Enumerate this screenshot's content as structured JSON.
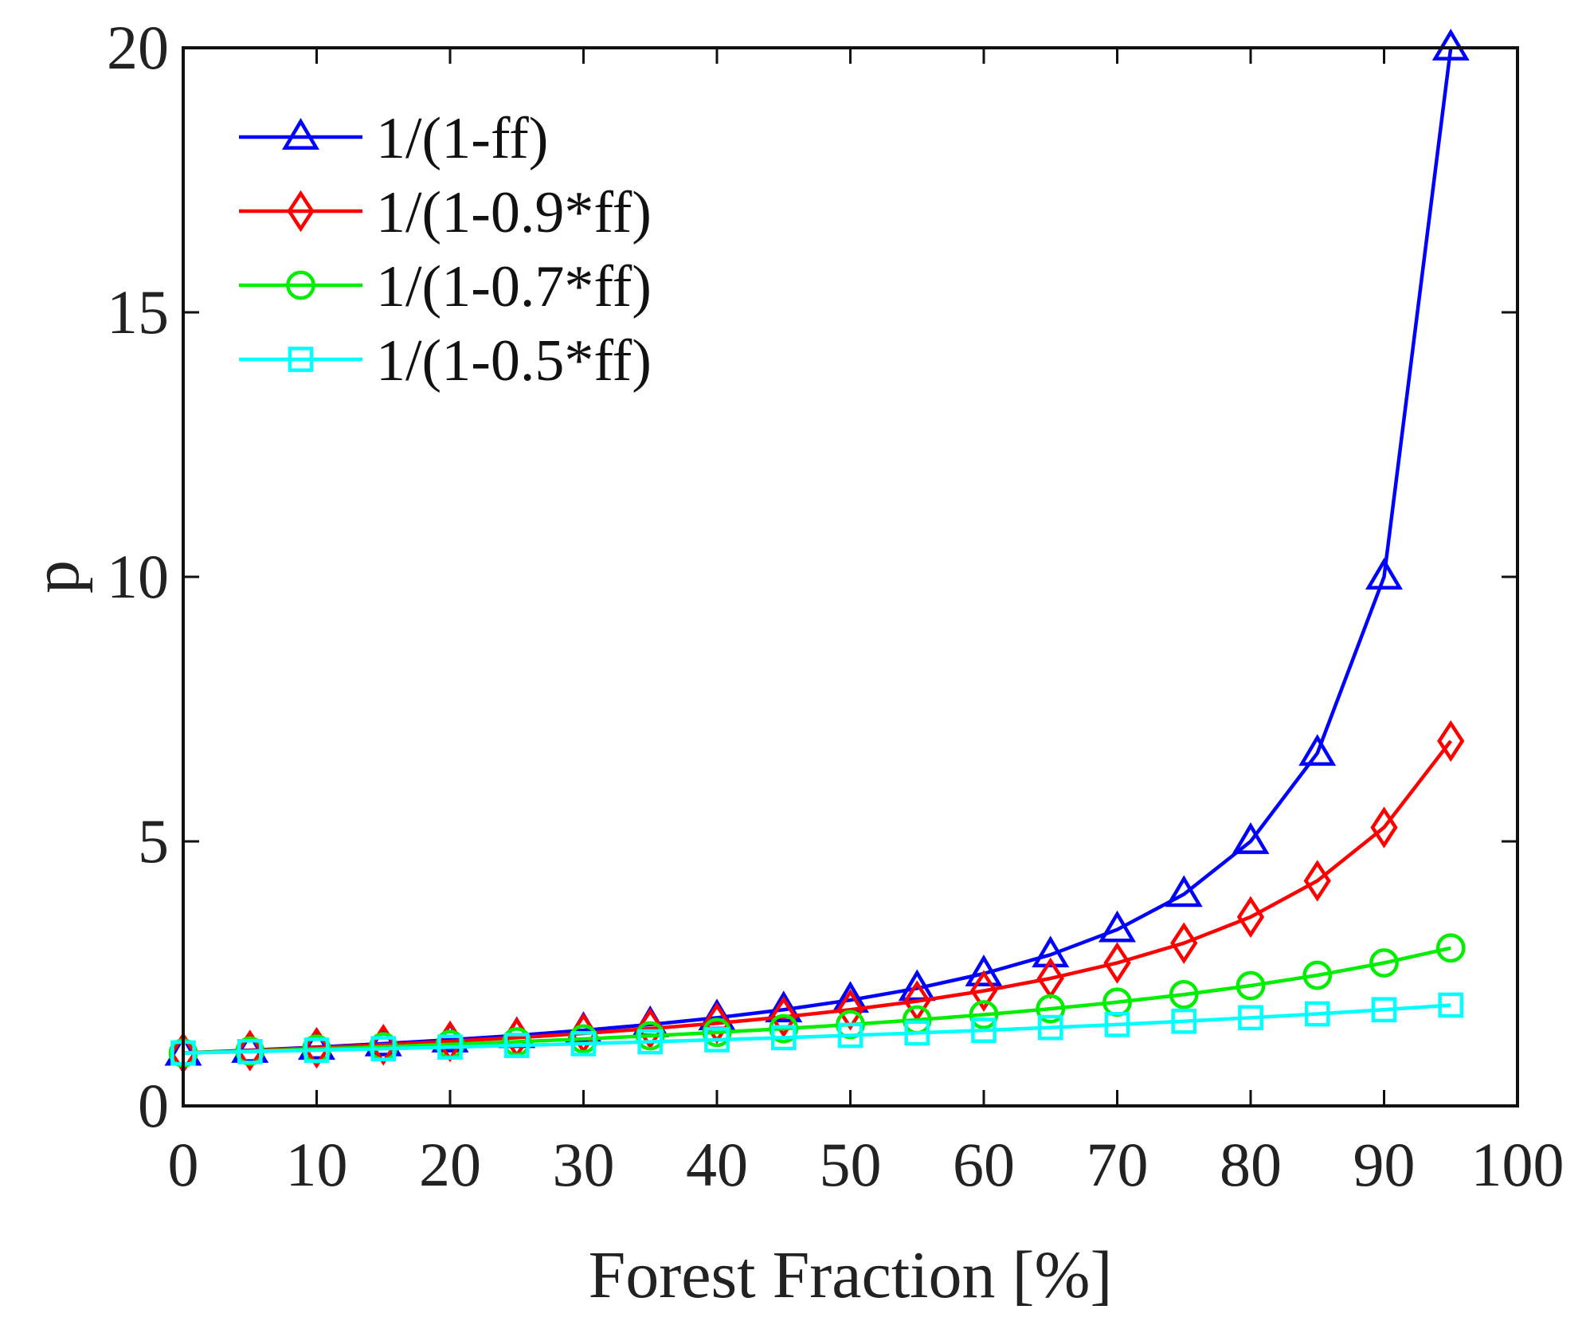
{
  "chart_data": {
    "type": "line",
    "title": "",
    "xlabel": "Forest Fraction [%]",
    "ylabel": "p",
    "xlim": [
      0,
      100
    ],
    "ylim": [
      0,
      20
    ],
    "xticks": [
      0,
      10,
      20,
      30,
      40,
      50,
      60,
      70,
      80,
      90,
      100
    ],
    "yticks": [
      0,
      5,
      10,
      15,
      20
    ],
    "grid": false,
    "legend_position": "top-left",
    "x": [
      0,
      5,
      10,
      15,
      20,
      25,
      30,
      35,
      40,
      45,
      50,
      55,
      60,
      65,
      70,
      75,
      80,
      85,
      90,
      95
    ],
    "series": [
      {
        "name": "1/(1-ff)",
        "color": "#0000ff",
        "marker": "triangle",
        "values": [
          1.0,
          1.053,
          1.111,
          1.176,
          1.25,
          1.333,
          1.429,
          1.538,
          1.667,
          1.818,
          2.0,
          2.222,
          2.5,
          2.857,
          3.333,
          4.0,
          5.0,
          6.667,
          10.0,
          20.0
        ]
      },
      {
        "name": "1/(1-0.9*ff)",
        "color": "#ff0000",
        "marker": "diamond",
        "values": [
          1.0,
          1.047,
          1.099,
          1.156,
          1.22,
          1.29,
          1.37,
          1.46,
          1.563,
          1.681,
          1.818,
          1.98,
          2.174,
          2.41,
          2.703,
          3.077,
          3.571,
          4.255,
          5.263,
          6.897
        ]
      },
      {
        "name": "1/(1-0.7*ff)",
        "color": "#00ee00",
        "marker": "circle",
        "values": [
          1.0,
          1.036,
          1.075,
          1.117,
          1.163,
          1.212,
          1.266,
          1.325,
          1.389,
          1.46,
          1.538,
          1.626,
          1.724,
          1.835,
          1.961,
          2.105,
          2.273,
          2.469,
          2.703,
          2.985
        ]
      },
      {
        "name": "1/(1-0.5*ff)",
        "color": "#00ffff",
        "marker": "square",
        "values": [
          1.0,
          1.026,
          1.053,
          1.081,
          1.111,
          1.143,
          1.176,
          1.212,
          1.25,
          1.29,
          1.333,
          1.379,
          1.429,
          1.481,
          1.538,
          1.6,
          1.667,
          1.739,
          1.818,
          1.905
        ]
      }
    ]
  }
}
